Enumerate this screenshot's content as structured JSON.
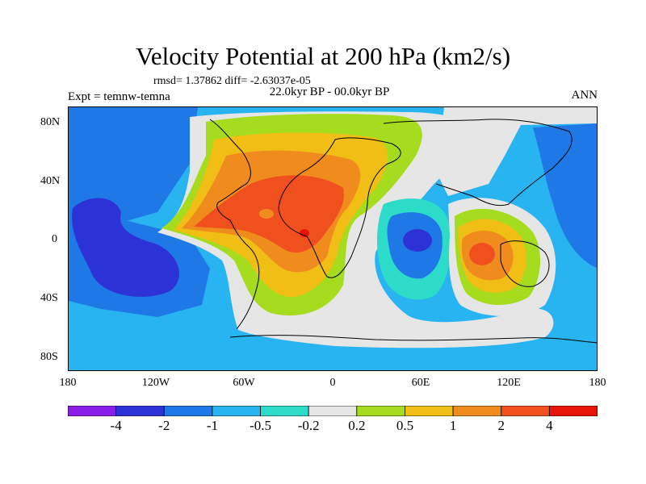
{
  "header": {
    "title": "Velocity Potential at 200 hPa (km2/s)",
    "stats": "rmsd= 1.37862 diff= -2.63037e-05",
    "experiment": "Expt = temnw-temna",
    "period": "22.0kyr BP - 00.0kyr BP",
    "season": "ANN"
  },
  "axes": {
    "lat_labels": [
      "80N",
      "40N",
      "0",
      "40S",
      "80S"
    ],
    "lon_labels": [
      "180",
      "120W",
      "60W",
      "0",
      "60E",
      "120E",
      "180"
    ]
  },
  "colorbar": {
    "labels": [
      "-4",
      "-2",
      "-1",
      "-0.5",
      "-0.2",
      "0.2",
      "0.5",
      "1",
      "2",
      "4"
    ],
    "colors": [
      "#8a1ee6",
      "#2d32d6",
      "#1e78e6",
      "#28b4f0",
      "#2ddcc8",
      "#e6e6e6",
      "#a6dc1e",
      "#f0be14",
      "#f08c1e",
      "#f0501e",
      "#e6140a"
    ]
  },
  "map": {
    "map_type": "global cylindrical equidistant field map with coastlines",
    "palette": {
      "ocean_base": "#28b4f0",
      "neg_mid": "#1e78e6",
      "neg_strong": "#2d32d6",
      "neg_weak": "#2ddcc8",
      "neutral": "#e6e6e6",
      "pos_weak": "#a6dc1e",
      "pos_mid": "#f0be14",
      "pos_strong": "#f08c1e",
      "pos_peak": "#f0501e",
      "pos_max": "#e6140a"
    }
  }
}
